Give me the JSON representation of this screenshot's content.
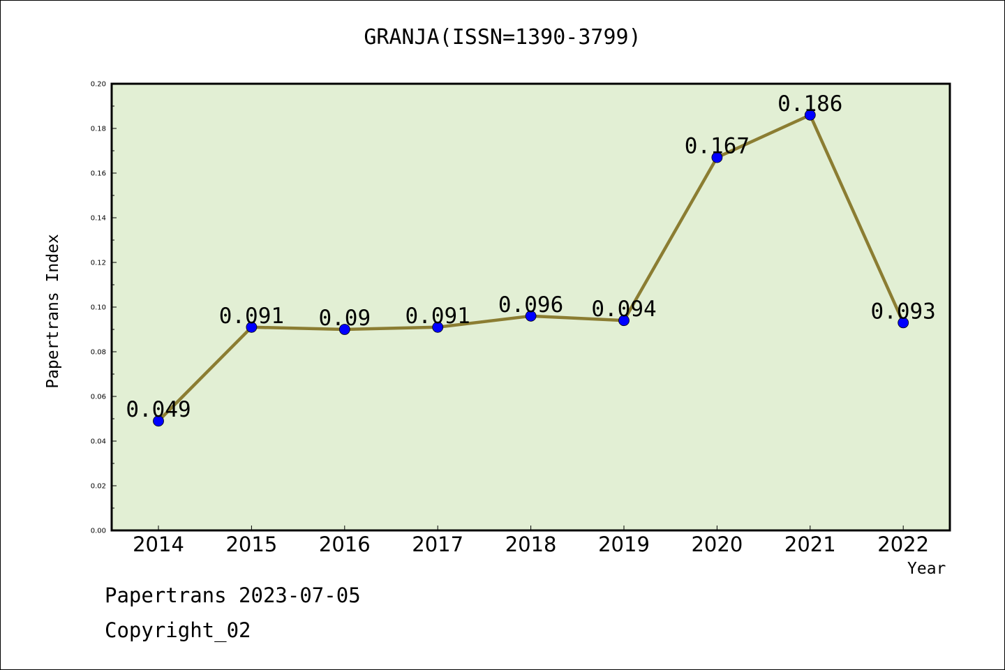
{
  "chart_data": {
    "type": "line",
    "title": "GRANJA(ISSN=1390-3799)",
    "xlabel": "Year",
    "ylabel": "Papertrans Index",
    "categories": [
      "2014",
      "2015",
      "2016",
      "2017",
      "2018",
      "2019",
      "2020",
      "2021",
      "2022"
    ],
    "series": [
      {
        "values": [
          0.049,
          0.091,
          0.09,
          0.091,
          0.096,
          0.094,
          0.167,
          0.186,
          0.093
        ],
        "labels": [
          "0.049",
          "0.091",
          "0.09",
          "0.091",
          "0.096",
          "0.094",
          "0.167",
          "0.186",
          "0.093"
        ]
      }
    ],
    "ylim": [
      0.0,
      0.2
    ],
    "yticks": [
      "0.00",
      "0.02",
      "0.04",
      "0.06",
      "0.08",
      "0.10",
      "0.12",
      "0.14",
      "0.16",
      "0.18",
      "0.20"
    ],
    "grid": false,
    "colors": {
      "plot_bg": "#e2efd4",
      "line": "#8b7d32",
      "marker": "#0000ff"
    }
  },
  "footer": {
    "line1": "Papertrans 2023-07-05",
    "line2": "Copyright_02"
  }
}
